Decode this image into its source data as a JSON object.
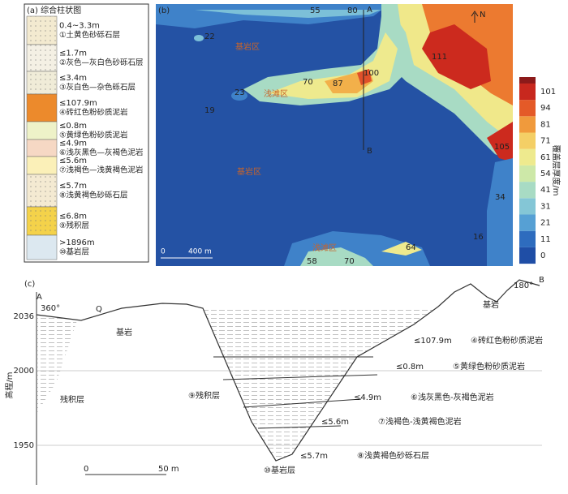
{
  "panel_a": {
    "label": "(a) 综合柱状图",
    "layers": [
      {
        "thickness": "0.4~3.3m",
        "name": "①土黄色砂砾石层"
      },
      {
        "thickness": "≤1.7m",
        "name": "②灰色—灰白色砂砾石层"
      },
      {
        "thickness": "≤3.4m",
        "name": "③灰白色—杂色砾石层"
      },
      {
        "thickness": "≤107.9m",
        "name": "④砖红色粉砂质泥岩"
      },
      {
        "thickness": "≤0.8m",
        "name": "⑤黄绿色粉砂质泥岩"
      },
      {
        "thickness": "≤4.9m",
        "name": "⑥浅灰黑色—灰褐色泥岩"
      },
      {
        "thickness": "≤5.6m",
        "name": "⑦浅褐色—浅黄褐色泥岩"
      },
      {
        "thickness": "≤5.7m",
        "name": "⑧浅黄褐色砂砾石层"
      },
      {
        "thickness": "≤6.8m",
        "name": "⑨残积层"
      },
      {
        "thickness": ">1896m",
        "name": "⑩基岩层"
      }
    ]
  },
  "panel_b": {
    "label": "(b)",
    "north": "N",
    "section_start": "A",
    "section_end": "B",
    "zones": [
      "基岩区",
      "浅滩区",
      "基岩区",
      "浅滩区"
    ],
    "contours": [
      55,
      80,
      22,
      111,
      70,
      87,
      100,
      23,
      19,
      105,
      34,
      16,
      64,
      58,
      70
    ],
    "scale": [
      "0",
      "400 m"
    ],
    "colorbar": {
      "title": "覆盖层厚度/m",
      "ticks": [
        0,
        11,
        21,
        31,
        41,
        54,
        61,
        71,
        81,
        94,
        101
      ]
    }
  },
  "panel_c": {
    "label": "(c)",
    "axis_title": "高程/m",
    "yticks": [
      2036,
      2000,
      1950
    ],
    "start": "A",
    "start_angle": "360°",
    "q": "Q",
    "end": "B",
    "end_angle": "180°",
    "rock": [
      "基岩",
      "基岩"
    ],
    "residual": [
      "残积层",
      "⑨残积层"
    ],
    "layers": [
      {
        "thickness": "≤107.9m",
        "name": "④砖红色粉砂质泥岩"
      },
      {
        "thickness": "≤0.8m",
        "name": "⑤黄绿色粉砂质泥岩"
      },
      {
        "thickness": "≤4.9m",
        "name": "⑥浅灰黑色-灰褐色泥岩"
      },
      {
        "thickness": "≤5.6m",
        "name": "⑦浅褐色-浅黄褐色泥岩"
      },
      {
        "thickness": "≤5.7m",
        "name": "⑧浅黄褐色砂砾石层"
      }
    ],
    "bedrock_layer": "⑩基岩层",
    "scale": [
      "0",
      "50 m"
    ]
  }
}
